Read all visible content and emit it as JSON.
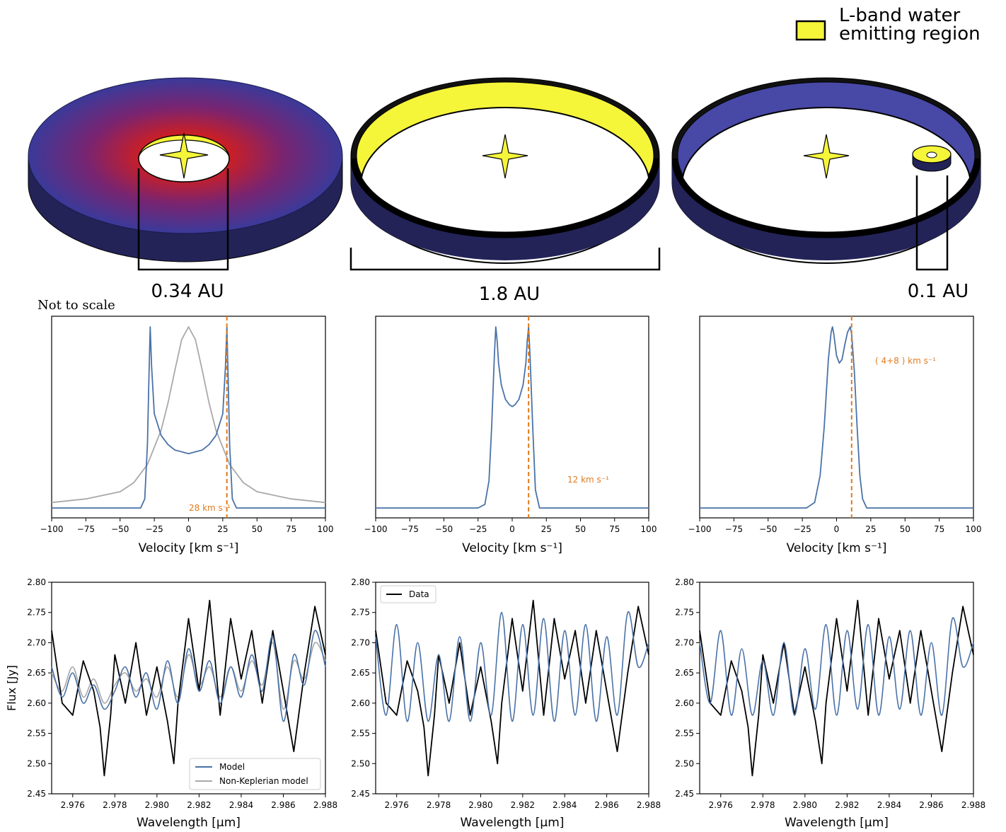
{
  "legend_top": {
    "line1": "L-band water",
    "line2": "emitting region",
    "swatch_color": "#f5f53a"
  },
  "scales": {
    "left": "0.34 AU",
    "middle": "1.8 AU",
    "right": "0.1 AU"
  },
  "note": "Not to scale",
  "colors": {
    "model": "#4a72a8",
    "nonkep": "#a9a9a9",
    "data": "#000000",
    "marker": "#e07b1e",
    "disk_outer": "#3a3a9a",
    "disk_inner": "#d21e1e",
    "disk_side": "#232358",
    "yellow": "#f5f53a"
  },
  "chart_data": [
    {
      "type": "line",
      "panel": "velocity-left",
      "xlabel": "Velocity [km s⁻¹]",
      "xlim": [
        -100,
        100
      ],
      "xticks": [
        "−100",
        "−75",
        "−50",
        "−25",
        "0",
        "25",
        "50",
        "75",
        "100"
      ],
      "series": [
        {
          "role": "keplerian",
          "x": [
            -100,
            -50,
            -40,
            -35,
            -32,
            -30,
            -29,
            -28,
            -27,
            -25,
            -20,
            -15,
            -10,
            -5,
            0,
            5,
            10,
            15,
            20,
            25,
            27,
            28,
            29,
            30,
            32,
            35,
            40,
            50,
            100
          ],
          "y": [
            0.0,
            0.0,
            0.0,
            0.0,
            0.05,
            0.35,
            0.7,
            1.0,
            0.78,
            0.52,
            0.4,
            0.35,
            0.32,
            0.31,
            0.3,
            0.31,
            0.32,
            0.35,
            0.4,
            0.52,
            0.78,
            1.0,
            0.7,
            0.35,
            0.05,
            0.0,
            0.0,
            0.0,
            0.0
          ]
        },
        {
          "role": "non-keplerian",
          "x": [
            -100,
            -75,
            -50,
            -40,
            -30,
            -20,
            -15,
            -10,
            -5,
            0,
            5,
            10,
            15,
            20,
            30,
            40,
            50,
            75,
            100
          ],
          "y": [
            0.03,
            0.05,
            0.09,
            0.14,
            0.24,
            0.43,
            0.58,
            0.76,
            0.93,
            1.0,
            0.93,
            0.76,
            0.58,
            0.43,
            0.24,
            0.14,
            0.09,
            0.05,
            0.03
          ]
        }
      ],
      "vline": 28,
      "annotation": "28 km s⁻¹"
    },
    {
      "type": "line",
      "panel": "velocity-middle",
      "xlabel": "Velocity [km s⁻¹]",
      "xlim": [
        -100,
        100
      ],
      "xticks": [
        "−100",
        "−75",
        "−50",
        "−25",
        "0",
        "25",
        "50",
        "75",
        "100"
      ],
      "series": [
        {
          "role": "keplerian",
          "x": [
            -100,
            -25,
            -20,
            -17,
            -15,
            -13,
            -12,
            -11,
            -10,
            -8,
            -5,
            -2,
            0,
            2,
            5,
            8,
            10,
            11,
            12,
            13,
            15,
            17,
            20,
            100
          ],
          "y": [
            0.0,
            0.0,
            0.02,
            0.15,
            0.45,
            0.85,
            1.0,
            0.92,
            0.8,
            0.68,
            0.6,
            0.57,
            0.56,
            0.57,
            0.6,
            0.68,
            0.8,
            0.92,
            1.0,
            0.85,
            0.45,
            0.1,
            0.0,
            0.0
          ]
        }
      ],
      "vline": 12,
      "annotation": "12 km s⁻¹"
    },
    {
      "type": "line",
      "panel": "velocity-right",
      "xlabel": "Velocity [km s⁻¹]",
      "xlim": [
        -100,
        100
      ],
      "xticks": [
        "−100",
        "−75",
        "−50",
        "−25",
        "0",
        "25",
        "50",
        "75",
        "100"
      ],
      "series": [
        {
          "role": "keplerian",
          "x": [
            -100,
            -22,
            -16,
            -12,
            -9,
            -6,
            -4,
            -3,
            -2,
            0,
            2,
            4,
            6,
            8,
            10,
            11,
            13,
            15,
            17,
            19,
            22,
            100
          ],
          "y": [
            0.0,
            0.0,
            0.03,
            0.18,
            0.45,
            0.82,
            0.97,
            1.0,
            0.96,
            0.84,
            0.8,
            0.82,
            0.9,
            0.97,
            1.0,
            0.96,
            0.75,
            0.45,
            0.18,
            0.05,
            0.0,
            0.0
          ]
        }
      ],
      "vline": 11,
      "annotation": "( 4+8 ) km s⁻¹"
    },
    {
      "type": "line",
      "panel": "spectrum-left",
      "xlabel": "Wavelength [μm]",
      "ylabel": "Flux [Jy]",
      "xlim": [
        2.975,
        2.988
      ],
      "ylim": [
        2.45,
        2.8
      ],
      "xticks": [
        "2.976",
        "2.978",
        "2.980",
        "2.982",
        "2.984",
        "2.986",
        "2.988"
      ],
      "yticks": [
        "2.45",
        "2.50",
        "2.55",
        "2.60",
        "2.65",
        "2.70",
        "2.75",
        "2.80"
      ],
      "legend": [
        "Model",
        "Non-Keplerian model"
      ],
      "series": [
        {
          "role": "data",
          "x": [
            2.975,
            2.9755,
            2.976,
            2.9765,
            2.977,
            2.9773,
            2.9775,
            2.9778,
            2.978,
            2.9785,
            2.979,
            2.9795,
            2.98,
            2.9805,
            2.9808,
            2.981,
            2.9815,
            2.982,
            2.9825,
            2.983,
            2.9835,
            2.984,
            2.9845,
            2.985,
            2.9855,
            2.986,
            2.9865,
            2.987,
            2.9875,
            2.988
          ],
          "y": [
            2.72,
            2.6,
            2.58,
            2.67,
            2.62,
            2.56,
            2.48,
            2.58,
            2.68,
            2.6,
            2.7,
            2.58,
            2.66,
            2.57,
            2.5,
            2.6,
            2.74,
            2.62,
            2.77,
            2.58,
            2.74,
            2.64,
            2.72,
            2.6,
            2.72,
            2.62,
            2.52,
            2.65,
            2.76,
            2.68
          ]
        },
        {
          "role": "model",
          "x": [
            2.975,
            2.9755,
            2.976,
            2.9765,
            2.977,
            2.9775,
            2.978,
            2.9785,
            2.979,
            2.9795,
            2.98,
            2.9805,
            2.981,
            2.9815,
            2.982,
            2.9825,
            2.983,
            2.9835,
            2.984,
            2.9845,
            2.985,
            2.9855,
            2.986,
            2.9865,
            2.987,
            2.9875,
            2.988
          ],
          "y": [
            2.66,
            2.61,
            2.65,
            2.6,
            2.63,
            2.59,
            2.62,
            2.66,
            2.61,
            2.65,
            2.59,
            2.67,
            2.6,
            2.69,
            2.62,
            2.67,
            2.6,
            2.66,
            2.61,
            2.68,
            2.62,
            2.71,
            2.57,
            2.68,
            2.63,
            2.72,
            2.66
          ]
        },
        {
          "role": "non-keplerian",
          "x": [
            2.975,
            2.9755,
            2.976,
            2.9765,
            2.977,
            2.9775,
            2.978,
            2.9785,
            2.979,
            2.9795,
            2.98,
            2.9805,
            2.981,
            2.9815,
            2.982,
            2.9825,
            2.983,
            2.9835,
            2.984,
            2.9845,
            2.985,
            2.9855,
            2.986,
            2.9865,
            2.987,
            2.9875,
            2.988
          ],
          "y": [
            2.65,
            2.62,
            2.66,
            2.61,
            2.64,
            2.6,
            2.63,
            2.65,
            2.62,
            2.64,
            2.61,
            2.66,
            2.61,
            2.68,
            2.63,
            2.66,
            2.61,
            2.66,
            2.62,
            2.67,
            2.63,
            2.7,
            2.59,
            2.67,
            2.64,
            2.7,
            2.67
          ]
        }
      ]
    },
    {
      "type": "line",
      "panel": "spectrum-middle",
      "xlabel": "Wavelength [μm]",
      "xlim": [
        2.975,
        2.988
      ],
      "ylim": [
        2.45,
        2.8
      ],
      "xticks": [
        "2.976",
        "2.978",
        "2.980",
        "2.982",
        "2.984",
        "2.986",
        "2.988"
      ],
      "yticks": [
        "2.45",
        "2.50",
        "2.55",
        "2.60",
        "2.65",
        "2.70",
        "2.75",
        "2.80"
      ],
      "legend": [
        "Data"
      ],
      "series": [
        {
          "role": "data",
          "x": [
            2.975,
            2.9755,
            2.976,
            2.9765,
            2.977,
            2.9773,
            2.9775,
            2.9778,
            2.978,
            2.9785,
            2.979,
            2.9795,
            2.98,
            2.9805,
            2.9808,
            2.981,
            2.9815,
            2.982,
            2.9825,
            2.983,
            2.9835,
            2.984,
            2.9845,
            2.985,
            2.9855,
            2.986,
            2.9865,
            2.987,
            2.9875,
            2.988
          ],
          "y": [
            2.72,
            2.6,
            2.58,
            2.67,
            2.62,
            2.56,
            2.48,
            2.58,
            2.68,
            2.6,
            2.7,
            2.58,
            2.66,
            2.57,
            2.5,
            2.6,
            2.74,
            2.62,
            2.77,
            2.58,
            2.74,
            2.64,
            2.72,
            2.6,
            2.72,
            2.62,
            2.52,
            2.65,
            2.76,
            2.68
          ]
        },
        {
          "role": "model",
          "x": [
            2.975,
            2.9755,
            2.976,
            2.9765,
            2.977,
            2.9775,
            2.978,
            2.9785,
            2.979,
            2.9795,
            2.98,
            2.9805,
            2.981,
            2.9815,
            2.982,
            2.9825,
            2.983,
            2.9835,
            2.984,
            2.9845,
            2.985,
            2.9855,
            2.986,
            2.9865,
            2.987,
            2.9875,
            2.988
          ],
          "y": [
            2.71,
            2.58,
            2.73,
            2.57,
            2.7,
            2.57,
            2.68,
            2.57,
            2.71,
            2.57,
            2.7,
            2.58,
            2.75,
            2.57,
            2.73,
            2.58,
            2.74,
            2.57,
            2.72,
            2.58,
            2.73,
            2.57,
            2.71,
            2.58,
            2.75,
            2.66,
            2.7
          ]
        }
      ]
    },
    {
      "type": "line",
      "panel": "spectrum-right",
      "xlabel": "Wavelength [μm]",
      "xlim": [
        2.975,
        2.988
      ],
      "ylim": [
        2.45,
        2.8
      ],
      "xticks": [
        "2.976",
        "2.978",
        "2.980",
        "2.982",
        "2.984",
        "2.986",
        "2.988"
      ],
      "yticks": [
        "2.45",
        "2.50",
        "2.55",
        "2.60",
        "2.65",
        "2.70",
        "2.75",
        "2.80"
      ],
      "series": [
        {
          "role": "data",
          "x": [
            2.975,
            2.9755,
            2.976,
            2.9765,
            2.977,
            2.9773,
            2.9775,
            2.9778,
            2.978,
            2.9785,
            2.979,
            2.9795,
            2.98,
            2.9805,
            2.9808,
            2.981,
            2.9815,
            2.982,
            2.9825,
            2.983,
            2.9835,
            2.984,
            2.9845,
            2.985,
            2.9855,
            2.986,
            2.9865,
            2.987,
            2.9875,
            2.988
          ],
          "y": [
            2.72,
            2.6,
            2.58,
            2.67,
            2.62,
            2.56,
            2.48,
            2.58,
            2.68,
            2.6,
            2.7,
            2.58,
            2.66,
            2.57,
            2.5,
            2.6,
            2.74,
            2.62,
            2.77,
            2.58,
            2.74,
            2.64,
            2.72,
            2.6,
            2.72,
            2.62,
            2.52,
            2.65,
            2.76,
            2.68
          ]
        },
        {
          "role": "model",
          "x": [
            2.975,
            2.9755,
            2.976,
            2.9765,
            2.977,
            2.9775,
            2.978,
            2.9785,
            2.979,
            2.9795,
            2.98,
            2.9805,
            2.981,
            2.9815,
            2.982,
            2.9825,
            2.983,
            2.9835,
            2.984,
            2.9845,
            2.985,
            2.9855,
            2.986,
            2.9865,
            2.987,
            2.9875,
            2.988
          ],
          "y": [
            2.7,
            2.6,
            2.72,
            2.58,
            2.69,
            2.58,
            2.67,
            2.58,
            2.7,
            2.58,
            2.69,
            2.59,
            2.73,
            2.58,
            2.72,
            2.59,
            2.73,
            2.58,
            2.71,
            2.59,
            2.72,
            2.58,
            2.7,
            2.58,
            2.74,
            2.66,
            2.7
          ]
        }
      ]
    }
  ]
}
